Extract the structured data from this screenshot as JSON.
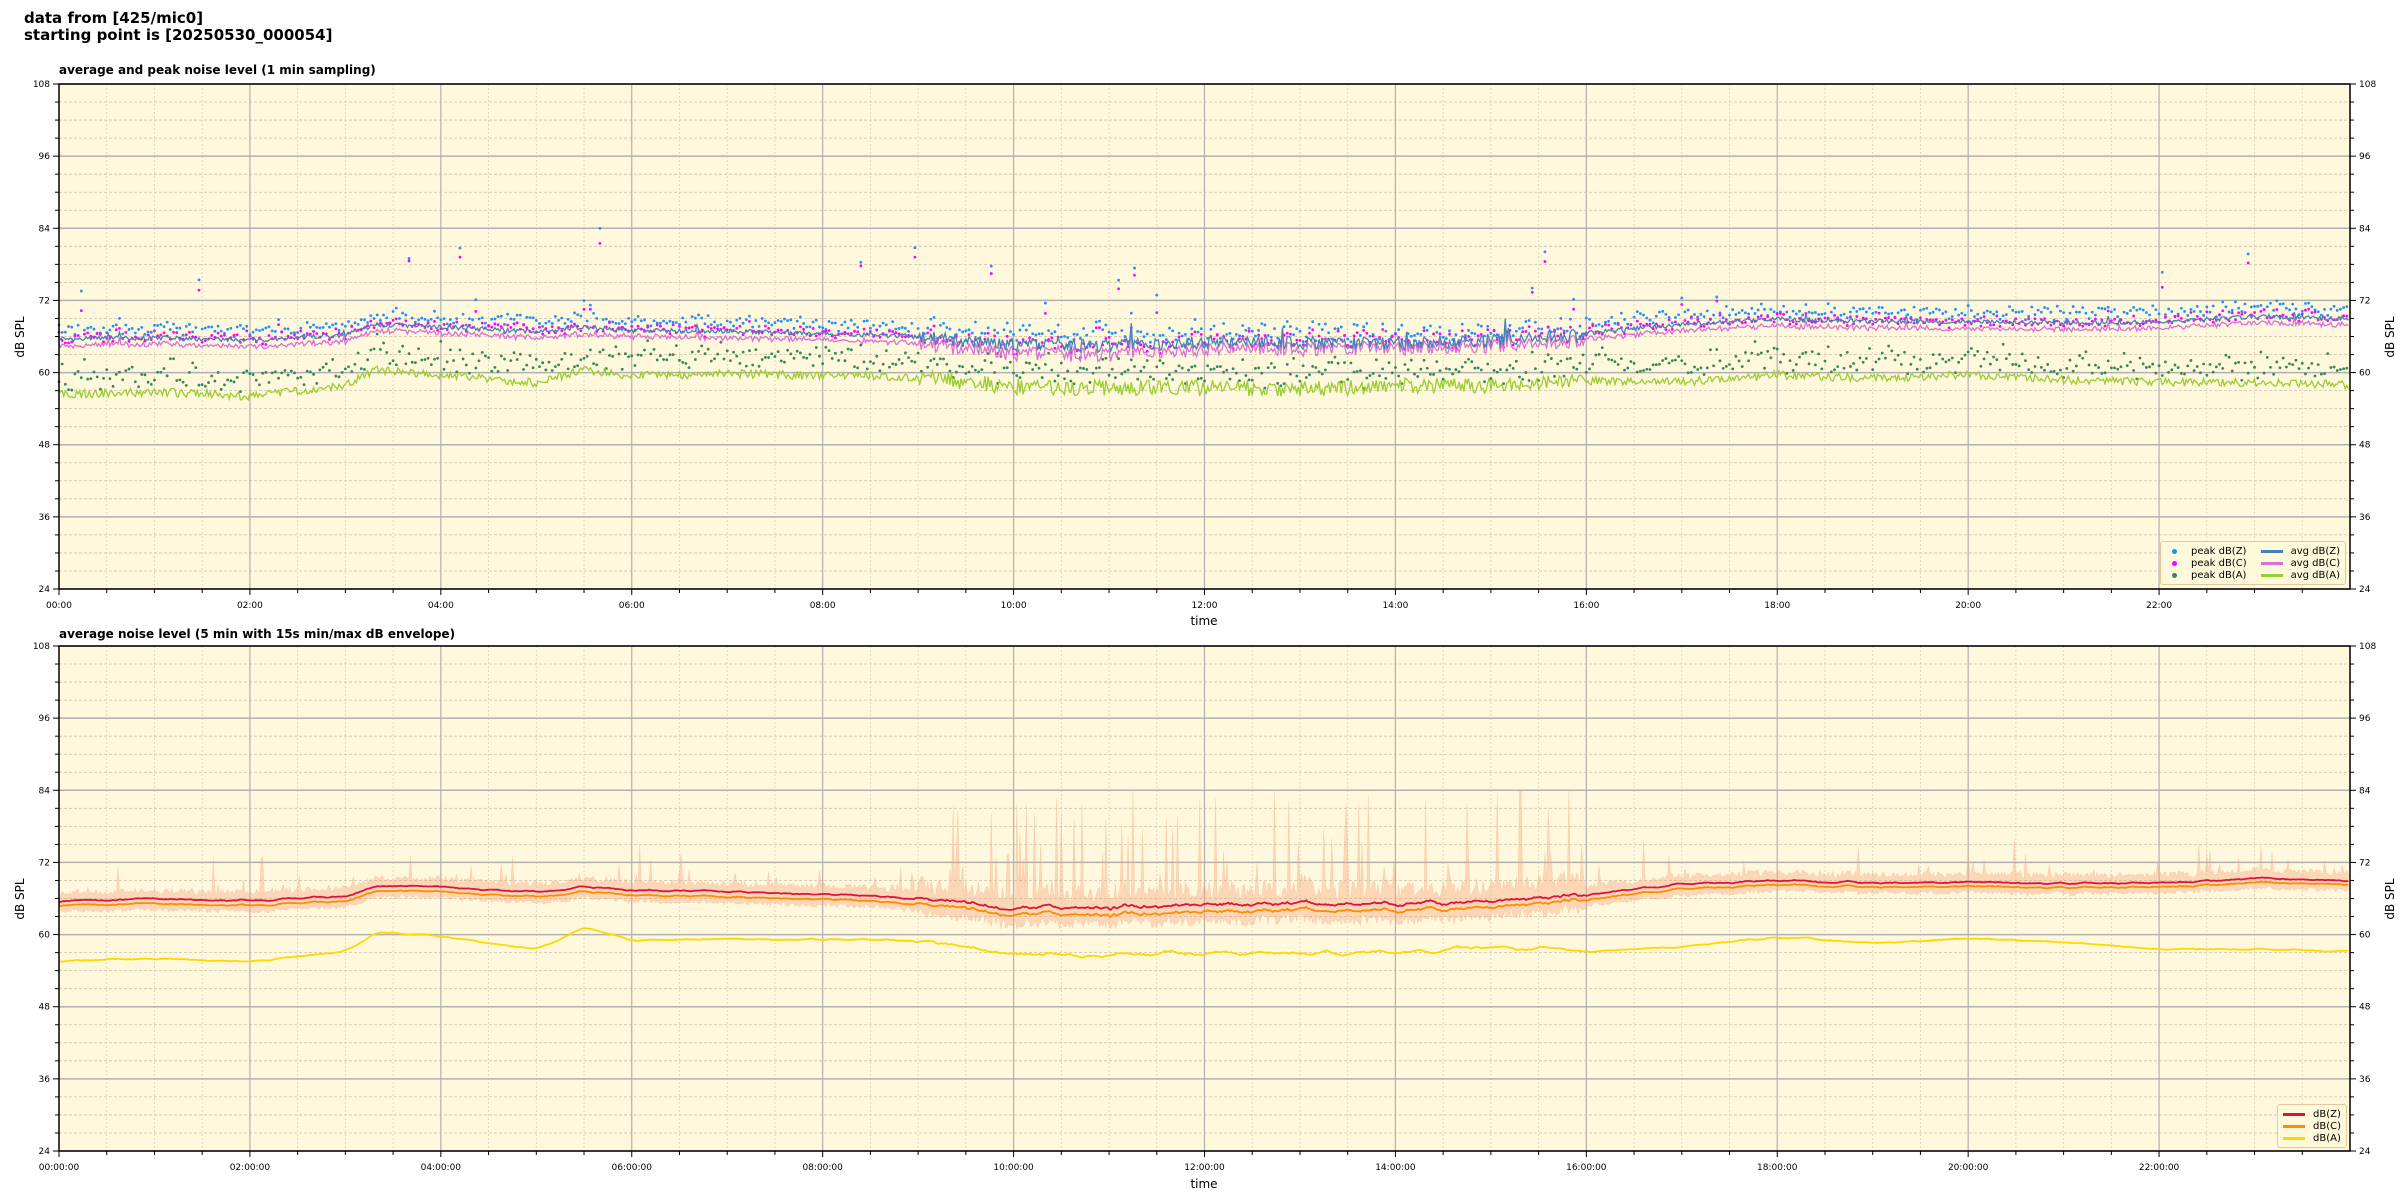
{
  "header": {
    "line1": "data from [425/mic0]",
    "line2": "starting point is [20250530_000054]"
  },
  "chart_data": [
    {
      "type": "line",
      "title": "average and peak noise level (1 min sampling)",
      "xlabel": "time",
      "ylabel": "dB SPL",
      "ylim": [
        24,
        108
      ],
      "xlim": [
        "00:00",
        "24:00"
      ],
      "yticks": [
        24,
        36,
        48,
        60,
        72,
        84,
        96,
        108
      ],
      "xtick_labels": [
        "00:00",
        "02:00",
        "04:00",
        "06:00",
        "08:00",
        "10:00",
        "12:00",
        "14:00",
        "16:00",
        "18:00",
        "20:00",
        "22:00"
      ],
      "grid": true,
      "background": "#fff8dc",
      "legend_position": "lower-right",
      "series": [
        {
          "name": "peak dB(Z)",
          "kind": "scatter",
          "color": "#1e90ff",
          "offset_above_avg": 1.6,
          "of": "avg dB(Z)"
        },
        {
          "name": "peak dB(C)",
          "kind": "scatter",
          "color": "#ff00ff",
          "offset_above_avg": 1.3,
          "of": "avg dB(C)"
        },
        {
          "name": "peak dB(A)",
          "kind": "scatter",
          "color": "#2e8b57",
          "offset_above_avg": 2.5,
          "of": "avg dB(A)"
        },
        {
          "name": "avg dB(Z)",
          "kind": "line",
          "color": "#4682b4",
          "points": [
            [
              "00:00",
              65.5
            ],
            [
              "01:00",
              65.8
            ],
            [
              "02:00",
              65.3
            ],
            [
              "03:00",
              66.3
            ],
            [
              "03:20",
              68.0
            ],
            [
              "04:00",
              67.6
            ],
            [
              "05:00",
              66.8
            ],
            [
              "05:30",
              67.6
            ],
            [
              "06:00",
              67.0
            ],
            [
              "07:00",
              66.9
            ],
            [
              "08:00",
              66.5
            ],
            [
              "09:00",
              66.0
            ],
            [
              "10:00",
              64.6
            ],
            [
              "11:00",
              64.5
            ],
            [
              "12:00",
              65.0
            ],
            [
              "13:00",
              65.0
            ],
            [
              "14:00",
              64.8
            ],
            [
              "15:00",
              65.3
            ],
            [
              "16:00",
              66.5
            ],
            [
              "17:00",
              68.0
            ],
            [
              "18:00",
              68.9
            ],
            [
              "19:00",
              68.5
            ],
            [
              "20:00",
              68.5
            ],
            [
              "21:00",
              68.3
            ],
            [
              "22:00",
              68.4
            ],
            [
              "23:00",
              69.3
            ],
            [
              "24:00",
              69.0
            ]
          ]
        },
        {
          "name": "avg dB(C)",
          "kind": "line",
          "color": "#da70d6",
          "points": [
            [
              "00:00",
              64.3
            ],
            [
              "01:00",
              64.8
            ],
            [
              "02:00",
              64.2
            ],
            [
              "03:00",
              65.2
            ],
            [
              "03:20",
              67.0
            ],
            [
              "04:00",
              66.6
            ],
            [
              "05:00",
              65.8
            ],
            [
              "05:30",
              66.4
            ],
            [
              "06:00",
              66.0
            ],
            [
              "07:00",
              65.8
            ],
            [
              "08:00",
              65.5
            ],
            [
              "09:00",
              64.9
            ],
            [
              "10:00",
              63.2
            ],
            [
              "11:00",
              63.0
            ],
            [
              "12:00",
              63.8
            ],
            [
              "13:00",
              64.0
            ],
            [
              "14:00",
              64.0
            ],
            [
              "15:00",
              64.4
            ],
            [
              "16:00",
              65.5
            ],
            [
              "17:00",
              67.0
            ],
            [
              "18:00",
              67.8
            ],
            [
              "19:00",
              67.4
            ],
            [
              "20:00",
              67.3
            ],
            [
              "21:00",
              67.2
            ],
            [
              "22:00",
              67.4
            ],
            [
              "23:00",
              68.3
            ],
            [
              "24:00",
              68.0
            ]
          ]
        },
        {
          "name": "avg dB(A)",
          "kind": "line",
          "color": "#9acd32",
          "points": [
            [
              "00:00",
              56.4
            ],
            [
              "01:00",
              56.8
            ],
            [
              "02:00",
              56.1
            ],
            [
              "03:00",
              57.8
            ],
            [
              "03:20",
              60.5
            ],
            [
              "04:00",
              59.6
            ],
            [
              "05:00",
              58.3
            ],
            [
              "05:30",
              60.5
            ],
            [
              "06:00",
              59.5
            ],
            [
              "07:00",
              59.8
            ],
            [
              "08:00",
              59.5
            ],
            [
              "09:00",
              59.3
            ],
            [
              "10:00",
              57.6
            ],
            [
              "11:00",
              57.4
            ],
            [
              "12:00",
              57.5
            ],
            [
              "13:00",
              57.2
            ],
            [
              "14:00",
              57.8
            ],
            [
              "15:00",
              57.9
            ],
            [
              "16:00",
              58.6
            ],
            [
              "17:00",
              58.4
            ],
            [
              "18:00",
              59.6
            ],
            [
              "19:00",
              59.0
            ],
            [
              "20:00",
              59.6
            ],
            [
              "21:00",
              58.8
            ],
            [
              "22:00",
              58.4
            ],
            [
              "23:00",
              58.3
            ],
            [
              "24:00",
              58.0
            ]
          ]
        }
      ]
    },
    {
      "type": "line",
      "title": "average noise level (5 min with 15s min/max dB envelope)",
      "xlabel": "time",
      "ylabel": "dB SPL",
      "ylim": [
        24,
        108
      ],
      "xlim": [
        "00:00:00",
        "24:00:00"
      ],
      "yticks": [
        24,
        36,
        48,
        60,
        72,
        84,
        96,
        108
      ],
      "xtick_labels": [
        "00:00:00",
        "02:00:00",
        "04:00:00",
        "06:00:00",
        "08:00:00",
        "10:00:00",
        "12:00:00",
        "14:00:00",
        "16:00:00",
        "18:00:00",
        "20:00:00",
        "22:00:00"
      ],
      "grid": true,
      "background": "#fff8dc",
      "legend_position": "lower-right",
      "envelope": {
        "color": "#f4a582",
        "max_peak": 84
      },
      "series": [
        {
          "name": "dB(Z)",
          "color": "#dc143c",
          "points": [
            [
              "00:00",
              65.5
            ],
            [
              "01:00",
              66.0
            ],
            [
              "02:00",
              65.6
            ],
            [
              "03:00",
              66.4
            ],
            [
              "03:20",
              68.2
            ],
            [
              "04:00",
              67.9
            ],
            [
              "05:00",
              67.0
            ],
            [
              "05:30",
              68.0
            ],
            [
              "06:00",
              67.3
            ],
            [
              "07:00",
              67.2
            ],
            [
              "08:00",
              66.7
            ],
            [
              "09:00",
              66.1
            ],
            [
              "10:00",
              64.5
            ],
            [
              "11:00",
              64.6
            ],
            [
              "12:00",
              65.0
            ],
            [
              "13:00",
              65.3
            ],
            [
              "14:00",
              65.2
            ],
            [
              "15:00",
              65.4
            ],
            [
              "16:00",
              66.8
            ],
            [
              "17:00",
              68.4
            ],
            [
              "18:00",
              69.0
            ],
            [
              "19:00",
              68.6
            ],
            [
              "20:00",
              68.7
            ],
            [
              "21:00",
              68.5
            ],
            [
              "22:00",
              68.6
            ],
            [
              "23:00",
              69.4
            ],
            [
              "24:00",
              69.0
            ]
          ]
        },
        {
          "name": "dB(C)",
          "color": "#ff8c00",
          "points": [
            [
              "00:00",
              64.8
            ],
            [
              "01:00",
              65.2
            ],
            [
              "02:00",
              64.8
            ],
            [
              "03:00",
              65.6
            ],
            [
              "03:20",
              67.4
            ],
            [
              "04:00",
              67.1
            ],
            [
              "05:00",
              66.2
            ],
            [
              "05:30",
              67.2
            ],
            [
              "06:00",
              66.5
            ],
            [
              "07:00",
              66.3
            ],
            [
              "08:00",
              65.9
            ],
            [
              "09:00",
              65.2
            ],
            [
              "10:00",
              63.5
            ],
            [
              "11:00",
              63.4
            ],
            [
              "12:00",
              63.8
            ],
            [
              "13:00",
              64.2
            ],
            [
              "14:00",
              64.1
            ],
            [
              "15:00",
              64.4
            ],
            [
              "16:00",
              66.0
            ],
            [
              "17:00",
              67.6
            ],
            [
              "18:00",
              68.3
            ],
            [
              "19:00",
              67.9
            ],
            [
              "20:00",
              68.0
            ],
            [
              "21:00",
              67.8
            ],
            [
              "22:00",
              67.9
            ],
            [
              "23:00",
              68.7
            ],
            [
              "24:00",
              68.4
            ]
          ]
        },
        {
          "name": "dB(A)",
          "color": "#ffd700",
          "points": [
            [
              "00:00",
              55.7
            ],
            [
              "01:00",
              56.0
            ],
            [
              "02:00",
              55.5
            ],
            [
              "03:00",
              57.2
            ],
            [
              "03:20",
              60.5
            ],
            [
              "04:00",
              59.7
            ],
            [
              "05:00",
              57.5
            ],
            [
              "05:30",
              61.2
            ],
            [
              "06:00",
              59.0
            ],
            [
              "07:00",
              59.3
            ],
            [
              "08:00",
              59.2
            ],
            [
              "09:00",
              59.0
            ],
            [
              "10:00",
              56.8
            ],
            [
              "11:00",
              56.6
            ],
            [
              "12:00",
              56.8
            ],
            [
              "13:00",
              56.9
            ],
            [
              "14:00",
              57.0
            ],
            [
              "15:00",
              58.0
            ],
            [
              "16:00",
              57.2
            ],
            [
              "17:00",
              58.0
            ],
            [
              "18:00",
              59.6
            ],
            [
              "19:00",
              58.6
            ],
            [
              "20:00",
              59.3
            ],
            [
              "21:00",
              58.8
            ],
            [
              "22:00",
              57.6
            ],
            [
              "23:00",
              57.6
            ],
            [
              "24:00",
              57.2
            ]
          ]
        }
      ]
    }
  ]
}
